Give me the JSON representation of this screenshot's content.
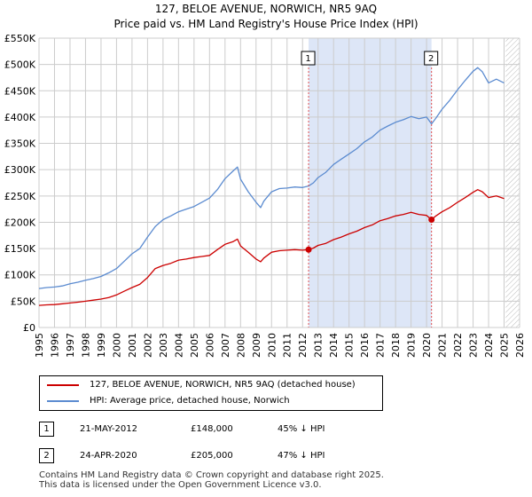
{
  "colors": {
    "property": "#cc0000",
    "hpi": "#5b8bd0",
    "band": "#dde6f7",
    "grid": "#cccccc",
    "vline": "#e05050"
  },
  "title_line1": "127, BELOE AVENUE, NORWICH, NR5 9AQ",
  "title_line2": "Price paid vs. HM Land Registry's House Price Index (HPI)",
  "chart_data": {
    "type": "line",
    "title": "127, BELOE AVENUE, NORWICH, NR5 9AQ — Price paid vs. HM Land Registry's House Price Index (HPI)",
    "xlabel": "",
    "ylabel": "",
    "xlim": [
      1995,
      2026
    ],
    "ylim": [
      0,
      550000
    ],
    "y_ticks": [
      0,
      50000,
      100000,
      150000,
      200000,
      250000,
      300000,
      350000,
      400000,
      450000,
      500000,
      550000
    ],
    "y_tick_labels": [
      "£0",
      "£50K",
      "£100K",
      "£150K",
      "£200K",
      "£250K",
      "£300K",
      "£350K",
      "£400K",
      "£450K",
      "£500K",
      "£550K"
    ],
    "x_ticks": [
      1995,
      1996,
      1997,
      1998,
      1999,
      2000,
      2001,
      2002,
      2003,
      2004,
      2005,
      2006,
      2007,
      2008,
      2009,
      2010,
      2011,
      2012,
      2013,
      2014,
      2015,
      2016,
      2017,
      2018,
      2019,
      2020,
      2021,
      2022,
      2023,
      2024,
      2025,
      2026
    ],
    "x_tick_labels": [
      "1995",
      "1996",
      "1997",
      "1998",
      "1999",
      "2000",
      "2001",
      "2002",
      "2003",
      "2004",
      "2005",
      "2006",
      "2007",
      "2008",
      "2009",
      "2010",
      "2011",
      "2012",
      "2013",
      "2014",
      "2015",
      "2016",
      "2017",
      "2018",
      "2019",
      "2020",
      "2021",
      "2022",
      "2023",
      "2024",
      "2025",
      "2026"
    ],
    "grid": true,
    "shaded_region": [
      2012.39,
      2020.32
    ],
    "future_hatch_from": 2025.1,
    "series": [
      {
        "name": "127, BELOE AVENUE, NORWICH, NR5 9AQ (detached house)",
        "color": "#cc0000",
        "x": [
          1995.0,
          1995.5,
          1996.0,
          1996.5,
          1997.0,
          1997.5,
          1998.0,
          1998.5,
          1999.0,
          1999.5,
          2000.0,
          2000.5,
          2001.0,
          2001.5,
          2002.0,
          2002.5,
          2003.0,
          2003.5,
          2004.0,
          2004.5,
          2005.0,
          2005.5,
          2006.0,
          2006.5,
          2007.0,
          2007.5,
          2007.8,
          2008.0,
          2008.5,
          2009.0,
          2009.3,
          2009.5,
          2010.0,
          2010.5,
          2011.0,
          2011.5,
          2012.0,
          2012.39,
          2012.7,
          2013.0,
          2013.5,
          2014.0,
          2014.5,
          2015.0,
          2015.5,
          2016.0,
          2016.5,
          2017.0,
          2017.5,
          2018.0,
          2018.5,
          2019.0,
          2019.5,
          2020.0,
          2020.32,
          2020.6,
          2021.0,
          2021.5,
          2022.0,
          2022.5,
          2023.0,
          2023.3,
          2023.6,
          2024.0,
          2024.5,
          2025.0
        ],
        "values": [
          42000,
          43000,
          43500,
          45000,
          46500,
          48000,
          50000,
          52000,
          54000,
          57000,
          62000,
          69000,
          76000,
          82000,
          95000,
          112000,
          118000,
          122000,
          128000,
          130000,
          133000,
          135000,
          137000,
          148000,
          158000,
          163000,
          168000,
          155000,
          143000,
          130000,
          125000,
          132000,
          143000,
          146000,
          147000,
          148000,
          147000,
          148000,
          151000,
          156000,
          160000,
          167000,
          172000,
          178000,
          183000,
          190000,
          195000,
          203000,
          207000,
          212000,
          215000,
          219000,
          215000,
          213000,
          205000,
          212000,
          220000,
          228000,
          238000,
          247000,
          257000,
          262000,
          258000,
          247000,
          250000,
          245000
        ]
      },
      {
        "name": "HPI: Average price, detached house, Norwich",
        "color": "#5b8bd0",
        "x": [
          1995.0,
          1995.5,
          1996.0,
          1996.5,
          1997.0,
          1997.5,
          1998.0,
          1998.5,
          1999.0,
          1999.5,
          2000.0,
          2000.5,
          2001.0,
          2001.5,
          2002.0,
          2002.5,
          2003.0,
          2003.5,
          2004.0,
          2004.5,
          2005.0,
          2005.5,
          2006.0,
          2006.5,
          2007.0,
          2007.5,
          2007.8,
          2008.0,
          2008.5,
          2009.0,
          2009.3,
          2009.5,
          2010.0,
          2010.5,
          2011.0,
          2011.5,
          2012.0,
          2012.39,
          2012.7,
          2013.0,
          2013.5,
          2014.0,
          2014.5,
          2015.0,
          2015.5,
          2016.0,
          2016.5,
          2017.0,
          2017.5,
          2018.0,
          2018.5,
          2019.0,
          2019.5,
          2020.0,
          2020.32,
          2020.6,
          2021.0,
          2021.5,
          2022.0,
          2022.5,
          2023.0,
          2023.3,
          2023.6,
          2024.0,
          2024.5,
          2025.0
        ],
        "values": [
          74000,
          76000,
          77000,
          79000,
          83000,
          86000,
          90000,
          93000,
          97000,
          104000,
          112000,
          126000,
          140000,
          150000,
          172000,
          192000,
          205000,
          212000,
          220000,
          225000,
          230000,
          238000,
          246000,
          262000,
          283000,
          297000,
          305000,
          282000,
          258000,
          238000,
          228000,
          240000,
          258000,
          264000,
          265000,
          267000,
          266000,
          269000,
          275000,
          285000,
          295000,
          310000,
          320000,
          330000,
          340000,
          353000,
          362000,
          375000,
          383000,
          390000,
          395000,
          401000,
          397000,
          400000,
          387000,
          398000,
          415000,
          432000,
          452000,
          470000,
          487000,
          494000,
          486000,
          465000,
          472000,
          465000
        ]
      }
    ],
    "annotations": [
      {
        "label": "1",
        "x": 2012.39,
        "y": 148000
      },
      {
        "label": "2",
        "x": 2020.32,
        "y": 205000
      }
    ]
  },
  "legend": {
    "items": [
      {
        "label": "127, BELOE AVENUE, NORWICH, NR5 9AQ (detached house)",
        "color": "#cc0000"
      },
      {
        "label": "HPI: Average price, detached house, Norwich",
        "color": "#5b8bd0"
      }
    ]
  },
  "transactions": [
    {
      "marker": "1",
      "date": "21-MAY-2012",
      "price": "£148,000",
      "delta": "45% ↓ HPI"
    },
    {
      "marker": "2",
      "date": "24-APR-2020",
      "price": "£205,000",
      "delta": "47% ↓ HPI"
    }
  ],
  "footer": {
    "line1": "Contains HM Land Registry data © Crown copyright and database right 2025.",
    "line2": "This data is licensed under the Open Government Licence v3.0."
  }
}
